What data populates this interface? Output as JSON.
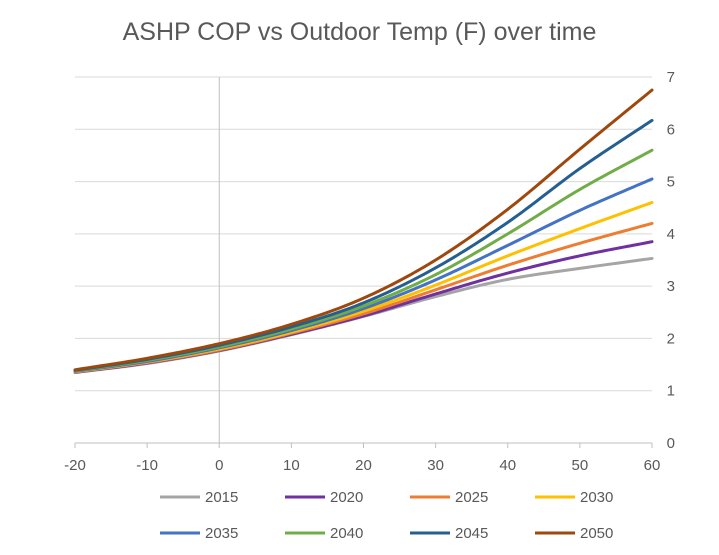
{
  "chart_data": {
    "type": "line",
    "title": "ASHP COP vs Outdoor Temp (F) over time",
    "xlabel": "",
    "ylabel": "",
    "xlim": [
      -20,
      60
    ],
    "ylim": [
      0,
      7
    ],
    "x_ticks": [
      -20,
      -10,
      0,
      10,
      20,
      30,
      40,
      50,
      60
    ],
    "y_ticks": [
      0,
      1,
      2,
      3,
      4,
      5,
      6,
      7
    ],
    "y_axis_side": "right",
    "grid": "horizontal",
    "legend_position": "bottom",
    "x": [
      -20,
      -10,
      0,
      10,
      20,
      30,
      40,
      50,
      60
    ],
    "series": [
      {
        "name": "2015",
        "color": "#a5a5a5",
        "values": [
          1.35,
          1.52,
          1.76,
          2.07,
          2.42,
          2.8,
          3.13,
          3.34,
          3.53
        ]
      },
      {
        "name": "2020",
        "color": "#7030a0",
        "values": [
          1.35,
          1.53,
          1.77,
          2.08,
          2.43,
          2.85,
          3.25,
          3.58,
          3.85
        ]
      },
      {
        "name": "2025",
        "color": "#ed7d31",
        "values": [
          1.36,
          1.54,
          1.78,
          2.1,
          2.47,
          2.93,
          3.4,
          3.82,
          4.2
        ]
      },
      {
        "name": "2030",
        "color": "#ffc000",
        "values": [
          1.36,
          1.55,
          1.8,
          2.12,
          2.52,
          3.02,
          3.58,
          4.1,
          4.6
        ]
      },
      {
        "name": "2035",
        "color": "#4472c4",
        "values": [
          1.37,
          1.56,
          1.82,
          2.15,
          2.57,
          3.12,
          3.78,
          4.45,
          5.05
        ]
      },
      {
        "name": "2040",
        "color": "#70ad47",
        "values": [
          1.38,
          1.58,
          1.84,
          2.18,
          2.62,
          3.22,
          4.0,
          4.85,
          5.6
        ]
      },
      {
        "name": "2045",
        "color": "#255e91",
        "values": [
          1.39,
          1.6,
          1.87,
          2.22,
          2.68,
          3.35,
          4.22,
          5.25,
          6.17
        ]
      },
      {
        "name": "2050",
        "color": "#9e480e",
        "values": [
          1.4,
          1.62,
          1.9,
          2.27,
          2.77,
          3.5,
          4.47,
          5.62,
          6.75
        ]
      }
    ]
  }
}
